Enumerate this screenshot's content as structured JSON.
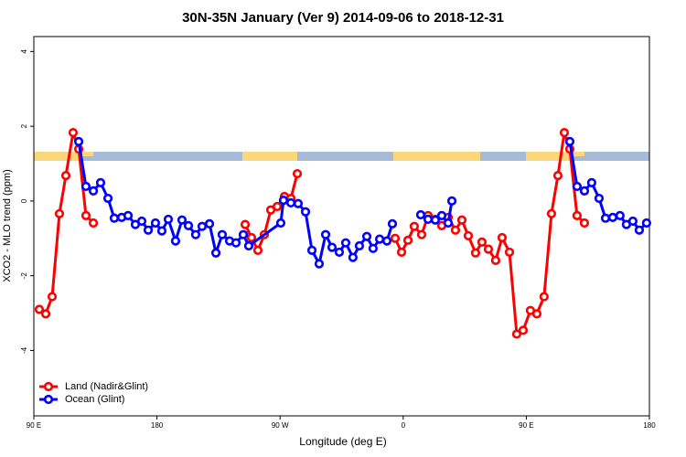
{
  "chart_data": {
    "type": "line",
    "title": "30N-35N January (Ver 9)   2014-09-06 to 2018-12-31",
    "x_label": "Longitude (deg E)",
    "y_label": "XCO2 - MLO trend (ppm)",
    "xlim": [
      90,
      540
    ],
    "ylim": [
      -5.75,
      4.4
    ],
    "xticks": [
      {
        "value": 90,
        "label": "90 E"
      },
      180,
      {
        "value": 270,
        "label": "90 W"
      },
      {
        "value": 360,
        "label": "0"
      },
      {
        "value": 450,
        "label": "90 E"
      },
      {
        "value": 540,
        "label": "180"
      }
    ],
    "yticks": [
      4,
      2,
      0,
      -2,
      -4
    ],
    "legend": "bottom-left",
    "series": [
      {
        "name": "Land (Nadir&Glint)",
        "color": "#ff0000",
        "x": [
          94,
          98.7,
          103.4,
          108.7,
          113.4,
          118.7,
          122.8,
          128.1,
          133.5,
          null,
          244.5,
          249.1,
          253.8,
          258.5,
          263.2,
          267.9,
          273.2,
          277.9,
          282.6,
          null,
          354.1,
          358.8,
          363.5,
          368.1,
          373.5,
          378.2,
          383.5,
          388.2,
          392.9,
          398.2,
          402.9,
          407.6,
          412.9,
          417.6,
          422.3,
          427.6,
          432.3,
          437.7,
          443,
          447.7,
          453,
          457.7,
          463,
          468.4,
          473.1,
          477.8,
          481.8,
          487.1,
          492.5
        ],
        "values": [
          -2.9,
          -3.02,
          -2.56,
          -0.34,
          0.68,
          1.83,
          1.39,
          -0.39,
          -0.59,
          null,
          -0.63,
          -0.98,
          -1.32,
          -0.9,
          -0.24,
          -0.15,
          0.12,
          0.07,
          0.73,
          null,
          -1.0,
          -1.37,
          -1.05,
          -0.68,
          -0.9,
          -0.39,
          -0.49,
          -0.66,
          -0.44,
          -0.78,
          -0.51,
          -0.93,
          -1.39,
          -1.1,
          -1.29,
          -1.59,
          -0.98,
          -1.37,
          -3.56,
          -3.46,
          -2.93,
          -3.02,
          -2.56,
          -0.34,
          0.68,
          1.83,
          1.39,
          -0.39,
          -0.59
        ]
      },
      {
        "name": "Ocean (Glint)",
        "color": "#0000ff",
        "x": [
          122.8,
          128.1,
          133.5,
          138.8,
          144.2,
          148.8,
          154.2,
          158.9,
          164.2,
          168.9,
          173.6,
          178.9,
          183.6,
          188.3,
          193.6,
          198.3,
          203,
          208.3,
          213,
          218.4,
          223.1,
          227.7,
          233.1,
          237.8,
          243.1,
          247.1,
          270.5,
          272.5,
          277.9,
          283.2,
          288.6,
          293.3,
          298.6,
          303.3,
          308,
          313.3,
          318,
          323.3,
          328,
          333.4,
          338,
          342.8,
          348.1,
          352.1,
          null,
          372.8,
          378.2,
          383.5,
          388.2,
          392.9,
          395.6,
          null,
          481.8,
          487.1,
          492.5,
          497.8,
          503.2,
          507.9,
          513.2,
          518.5,
          523.2,
          527.9,
          532.6,
          537.9
        ],
        "values": [
          1.59,
          0.39,
          0.27,
          0.49,
          0.07,
          -0.46,
          -0.44,
          -0.39,
          -0.63,
          -0.54,
          -0.78,
          -0.59,
          -0.8,
          -0.49,
          -1.07,
          -0.51,
          -0.66,
          -0.9,
          -0.68,
          -0.61,
          -1.39,
          -0.9,
          -1.07,
          -1.12,
          -0.9,
          -1.2,
          -0.59,
          0.02,
          -0.05,
          -0.07,
          -0.29,
          -1.32,
          -1.68,
          -0.9,
          -1.24,
          -1.37,
          -1.12,
          -1.51,
          -1.2,
          -0.95,
          -1.27,
          -1.02,
          -1.07,
          -0.61,
          null,
          -0.37,
          -0.49,
          -0.51,
          -0.39,
          -0.59,
          0.0,
          null,
          1.59,
          0.39,
          0.27,
          0.49,
          0.07,
          -0.46,
          -0.44,
          -0.39,
          -0.63,
          -0.54,
          -0.78,
          -0.59
        ]
      }
    ]
  }
}
